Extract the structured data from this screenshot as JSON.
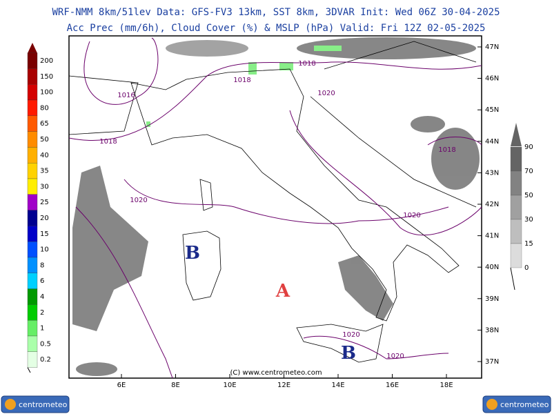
{
  "header": {
    "line1": "WRF-NMM 8km/51lev  Data: GFS-FV3 13km, SST 8km, 3DVAR  Init: Wed 06Z 30-04-2025",
    "line2": "Acc Prec (mm/6h), Cloud Cover (%) & MSLP (hPa)  Valid: Fri 12Z 02-05-2025"
  },
  "precip_legend": {
    "labels": [
      "200",
      "150",
      "100",
      "80",
      "65",
      "50",
      "40",
      "35",
      "30",
      "25",
      "20",
      "15",
      "10",
      "8",
      "6",
      "4",
      "2",
      "1",
      "0.5",
      "0.2"
    ],
    "colors": [
      "#7a0000",
      "#a80000",
      "#d40000",
      "#ff1a00",
      "#ff5a00",
      "#ff8c00",
      "#ffb000",
      "#ffd200",
      "#ffee00",
      "#a000c8",
      "#000090",
      "#0000c8",
      "#0050ff",
      "#0090ff",
      "#00d0ff",
      "#009a00",
      "#00cc00",
      "#66ee66",
      "#aaffaa",
      "#e4ffe4"
    ]
  },
  "cloud_legend": {
    "labels": [
      "90",
      "70",
      "50",
      "30",
      "15",
      "0"
    ],
    "colors": [
      "#646464",
      "#828282",
      "#a0a0a0",
      "#bebebe",
      "#dcdcdc",
      "#f4f4f4"
    ]
  },
  "lat_labels": [
    "47N",
    "46N",
    "45N",
    "44N",
    "43N",
    "42N",
    "41N",
    "40N",
    "39N",
    "38N",
    "37N"
  ],
  "lon_labels": [
    "6E",
    "8E",
    "10E",
    "12E",
    "14E",
    "16E",
    "18E"
  ],
  "isobar_labels": [
    "1016",
    "1018",
    "1020",
    "1018",
    "1018",
    "1020",
    "1018",
    "1020",
    "1020",
    "1020"
  ],
  "pressure_centers": [
    "B",
    "A",
    "B"
  ],
  "copyright": "(C) www.centrometeo.com",
  "logos": [
    "centrometeo",
    "centrometeo"
  ]
}
